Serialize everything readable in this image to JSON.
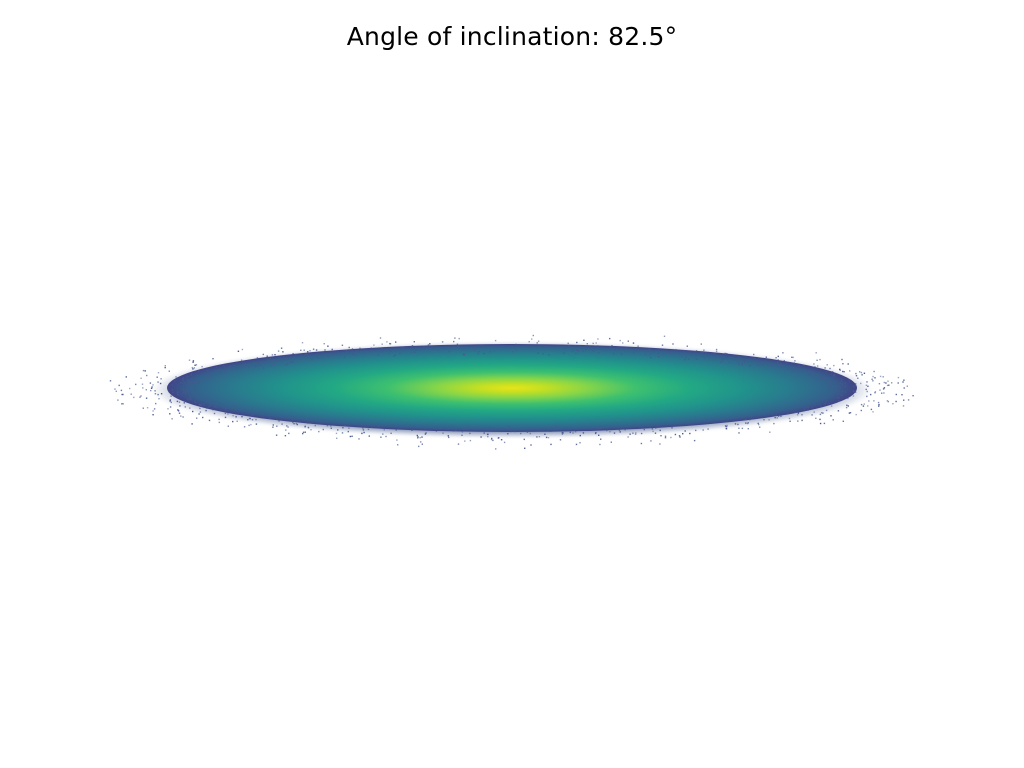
{
  "title": "Angle of inclination: 82.5°",
  "colors": {
    "background": "#ffffff",
    "outer": "#46598f",
    "mid": "#2e7f8f",
    "inner": "#21a784",
    "core": "#dde318"
  }
}
